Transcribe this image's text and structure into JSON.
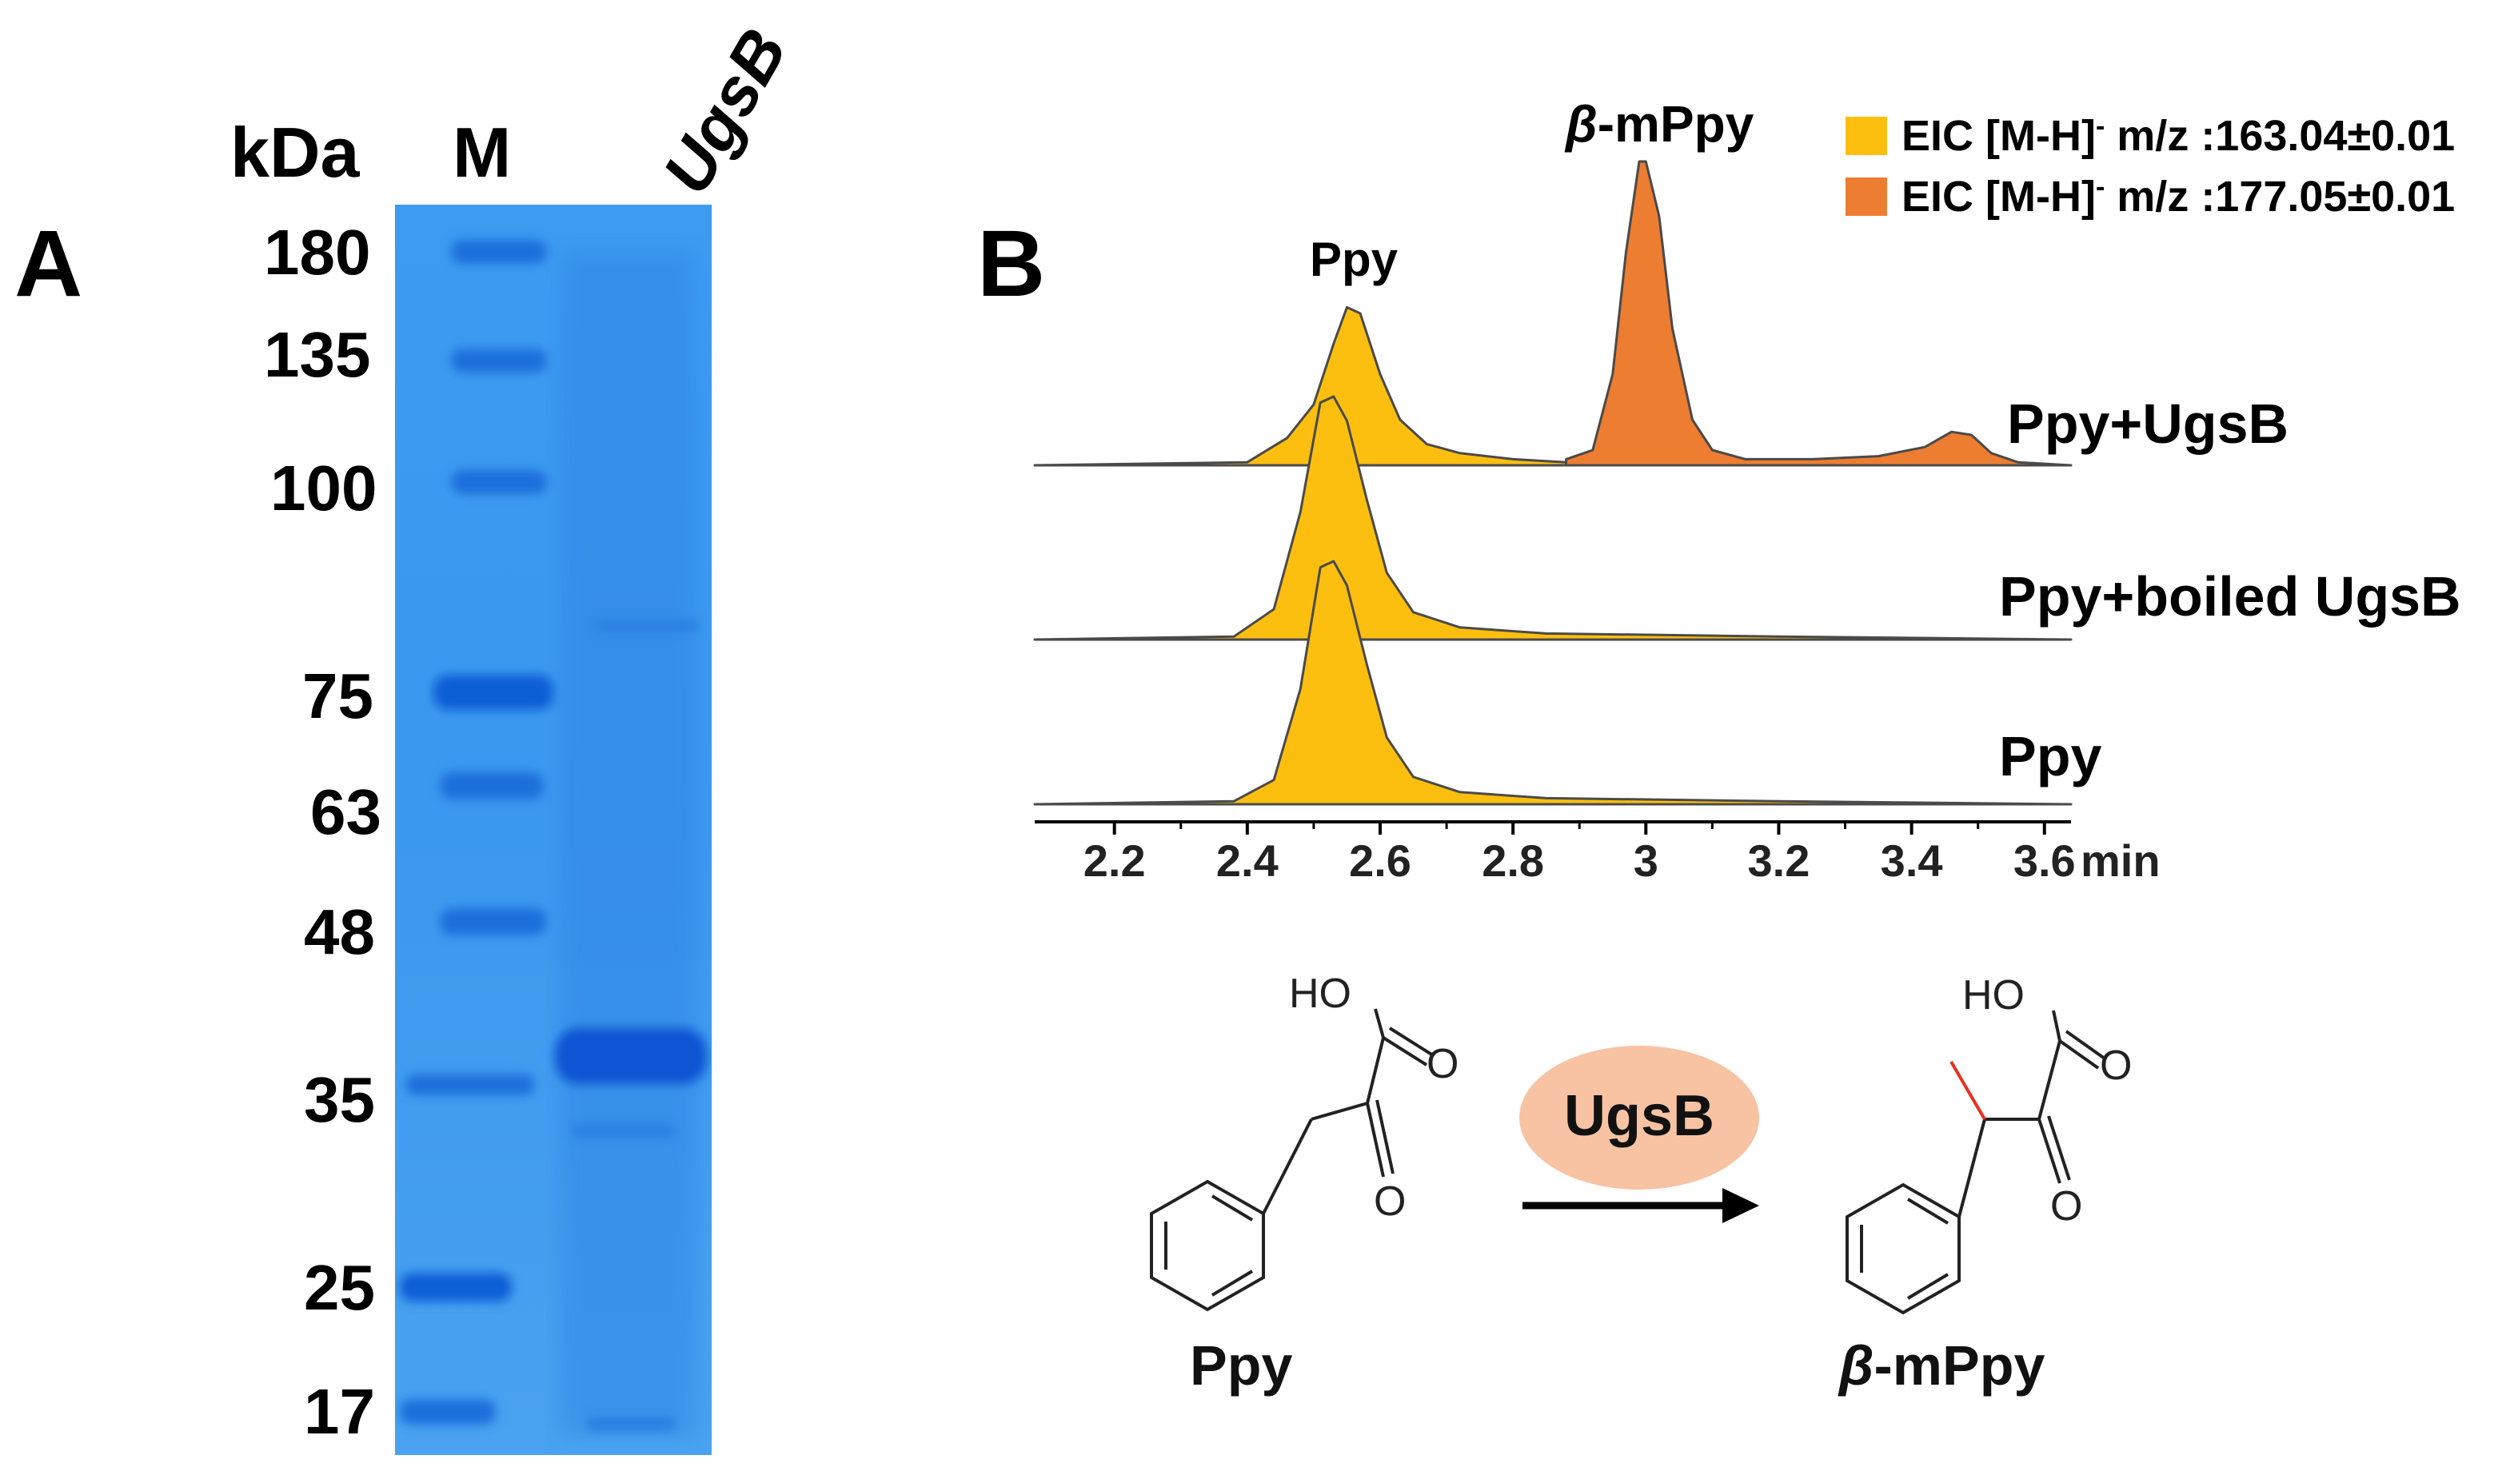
{
  "panel_a": {
    "letter": "A",
    "unit_label": "kDa",
    "lane_marker": "M",
    "lane_sample": "UgsB",
    "ladder": [
      "180",
      "135",
      "100",
      "75",
      "63",
      "48",
      "35",
      "25",
      "17"
    ],
    "gel_color": "#2f8ee8"
  },
  "panel_b": {
    "letter": "B",
    "legend": [
      {
        "label": "EIC [M-H]",
        "sup": "-",
        "suffix": "m/z :163.04±0.01",
        "color": "#fdbf0f"
      },
      {
        "label": "EIC [M-H]",
        "sup": "-",
        "suffix": "m/z :177.05±0.01",
        "color": "#ed7d31"
      }
    ],
    "peak_labels": {
      "ppy": "Ppy",
      "beta_prefix": "β",
      "beta_rest": "-mPpy"
    },
    "trace_labels": [
      "Ppy+UgsB",
      "Ppy+boiled UgsB",
      "Ppy"
    ],
    "x_ticks": [
      "2.2",
      "2.4",
      "2.6",
      "2.8",
      "3",
      "3.2",
      "3.4",
      "3.6"
    ],
    "x_unit": "min"
  },
  "chart_data": {
    "type": "area",
    "x_unit": "min",
    "xlim": [
      2.08,
      3.64
    ],
    "x_ticks": [
      2.2,
      2.4,
      2.6,
      2.8,
      3.0,
      3.2,
      3.4,
      3.6
    ],
    "grid": false,
    "legend_position": "top-right",
    "series": [
      {
        "trace": "Ppy+UgsB",
        "name": "EIC [M-H]- m/z :163.04±0.01",
        "color": "#fdbf0f",
        "x": [
          2.08,
          2.4,
          2.46,
          2.5,
          2.53,
          2.55,
          2.57,
          2.6,
          2.63,
          2.67,
          2.72,
          2.8,
          2.88
        ],
        "y": [
          0,
          0.01,
          0.09,
          0.2,
          0.4,
          0.52,
          0.5,
          0.3,
          0.15,
          0.07,
          0.04,
          0.02,
          0.01
        ]
      },
      {
        "trace": "Ppy+UgsB",
        "name": "EIC [M-H]- m/z :177.05±0.01",
        "color": "#ed7d31",
        "x": [
          2.88,
          2.92,
          2.95,
          2.97,
          2.99,
          3.0,
          3.02,
          3.04,
          3.07,
          3.1,
          3.15,
          3.25,
          3.35,
          3.42,
          3.46,
          3.49,
          3.52,
          3.56,
          3.64
        ],
        "y": [
          0.02,
          0.05,
          0.3,
          0.7,
          1.0,
          1.0,
          0.82,
          0.45,
          0.15,
          0.05,
          0.02,
          0.02,
          0.03,
          0.06,
          0.11,
          0.1,
          0.04,
          0.01,
          0
        ]
      },
      {
        "trace": "Ppy+boiled UgsB",
        "name": "EIC [M-H]- m/z :163.04±0.01",
        "color": "#fdbf0f",
        "x": [
          2.08,
          2.38,
          2.44,
          2.48,
          2.51,
          2.53,
          2.55,
          2.58,
          2.61,
          2.65,
          2.72,
          2.85,
          3.2,
          3.64
        ],
        "y": [
          0,
          0.01,
          0.1,
          0.42,
          0.78,
          0.8,
          0.72,
          0.46,
          0.22,
          0.09,
          0.04,
          0.02,
          0.01,
          0
        ]
      },
      {
        "trace": "Ppy",
        "name": "EIC [M-H]- m/z :163.04±0.01",
        "color": "#fdbf0f",
        "x": [
          2.08,
          2.38,
          2.44,
          2.48,
          2.51,
          2.53,
          2.55,
          2.58,
          2.61,
          2.65,
          2.72,
          2.85,
          3.2,
          3.64
        ],
        "y": [
          0,
          0.01,
          0.08,
          0.38,
          0.78,
          0.8,
          0.72,
          0.46,
          0.22,
          0.09,
          0.04,
          0.02,
          0.01,
          0
        ]
      }
    ]
  },
  "reaction": {
    "substrate_label": "Ppy",
    "enzyme": "UgsB",
    "product_prefix": "β",
    "product_rest": "-mPpy",
    "atom_ho": "HO",
    "atom_o": "O",
    "enzyme_fill": "#f7c3a3",
    "methyl_color": "#e8301f"
  }
}
